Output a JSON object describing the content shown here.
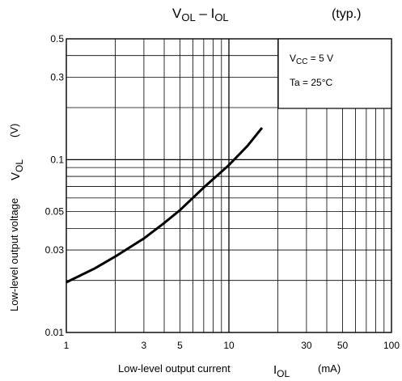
{
  "chart_data": {
    "type": "line",
    "title": {
      "main": "V",
      "main_sub": "OL",
      "dash": " – I",
      "dash_sub": "OL"
    },
    "note": "(typ.)",
    "x_axis": {
      "scale": "log",
      "range": [
        1,
        100
      ],
      "label": "Low-level output current",
      "symbol": "I",
      "symbol_sub": "OL",
      "unit": "(mA)",
      "ticks": [
        {
          "value": 1,
          "label": "1"
        },
        {
          "value": 3,
          "label": "3"
        },
        {
          "value": 5,
          "label": "5"
        },
        {
          "value": 10,
          "label": "10"
        },
        {
          "value": 30,
          "label": "30"
        },
        {
          "value": 50,
          "label": "50"
        },
        {
          "value": 100,
          "label": "100"
        }
      ]
    },
    "y_axis": {
      "scale": "log",
      "range": [
        0.01,
        0.5
      ],
      "label": "Low-level output voltage",
      "symbol": "V",
      "symbol_sub": "OL",
      "unit": "(V)",
      "ticks": [
        {
          "value": 0.01,
          "label": "0.01"
        },
        {
          "value": 0.03,
          "label": "0.03"
        },
        {
          "value": 0.05,
          "label": "0.05"
        },
        {
          "value": 0.1,
          "label": "0.1"
        },
        {
          "value": 0.3,
          "label": "0.3"
        },
        {
          "value": 0.5,
          "label": "0.5"
        }
      ]
    },
    "grid": true,
    "conditions": [
      {
        "text": "V",
        "sub": "CC",
        "rest": " = 5 V"
      },
      {
        "text": "Ta = 25°C",
        "sub": "",
        "rest": ""
      }
    ],
    "legend_placement": "top-right",
    "series": [
      {
        "points": [
          [
            1,
            0.0195
          ],
          [
            1.5,
            0.0235
          ],
          [
            2,
            0.0275
          ],
          [
            3,
            0.035
          ],
          [
            4,
            0.043
          ],
          [
            5,
            0.051
          ],
          [
            7,
            0.069
          ],
          [
            10,
            0.093
          ],
          [
            13,
            0.12
          ],
          [
            16,
            0.153
          ]
        ]
      }
    ]
  }
}
